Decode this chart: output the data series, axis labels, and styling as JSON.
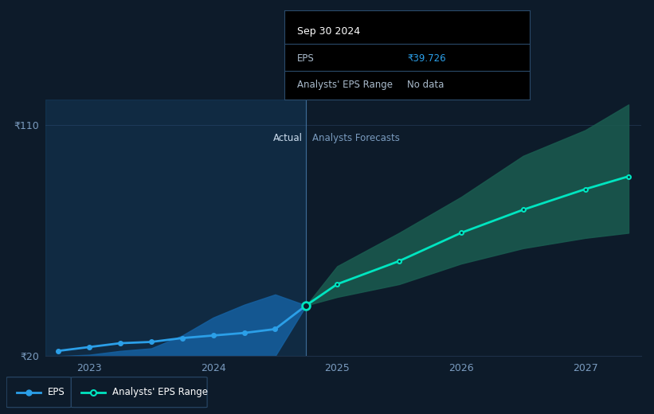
{
  "bg_color": "#0d1b2a",
  "grid_color": "#1e3048",
  "actual_label": "Actual",
  "forecast_label": "Analysts Forecasts",
  "eps_line_color": "#2b9fe8",
  "eps_forecast_color": "#00e5c0",
  "band_actual_color": "#1560a0",
  "band_forecast_color": "#1a5c50",
  "divider_x": 2024.75,
  "ylim": [
    20,
    120
  ],
  "xlim": [
    2022.65,
    2027.45
  ],
  "eps_actual_x": [
    2022.75,
    2023.0,
    2023.25,
    2023.5,
    2023.75,
    2024.0,
    2024.25,
    2024.5,
    2024.75
  ],
  "eps_actual_y": [
    22,
    23.5,
    25,
    25.5,
    27,
    28,
    29,
    30.5,
    39.726
  ],
  "eps_band_actual_low": [
    20,
    20,
    20,
    20,
    20,
    20,
    20,
    20,
    39.726
  ],
  "eps_band_actual_high": [
    20,
    20.5,
    22,
    23,
    28,
    35,
    40,
    44,
    39.726
  ],
  "eps_forecast_x": [
    2024.75,
    2025.0,
    2025.5,
    2026.0,
    2026.5,
    2027.0,
    2027.35
  ],
  "eps_forecast_y": [
    39.726,
    48,
    57,
    68,
    77,
    85,
    90
  ],
  "eps_band_low": [
    39.726,
    43,
    48,
    56,
    62,
    66,
    68
  ],
  "eps_band_high": [
    39.726,
    55,
    68,
    82,
    98,
    108,
    118
  ],
  "tooltip_date": "Sep 30 2024",
  "tooltip_eps_label": "EPS",
  "tooltip_eps_value": "₹39.726",
  "tooltip_range_label": "Analysts' EPS Range",
  "tooltip_range_value": "No data",
  "tooltip_eps_color": "#2b9fe8",
  "legend_eps_label": "EPS",
  "legend_range_label": "Analysts' EPS Range",
  "ytick_positions": [
    20,
    110
  ],
  "ytick_labels": [
    "₹20",
    "₹110"
  ],
  "xtick_positions": [
    2023,
    2024,
    2025,
    2026,
    2027
  ],
  "xtick_labels": [
    "2023",
    "2024",
    "2025",
    "2026",
    "2027"
  ]
}
